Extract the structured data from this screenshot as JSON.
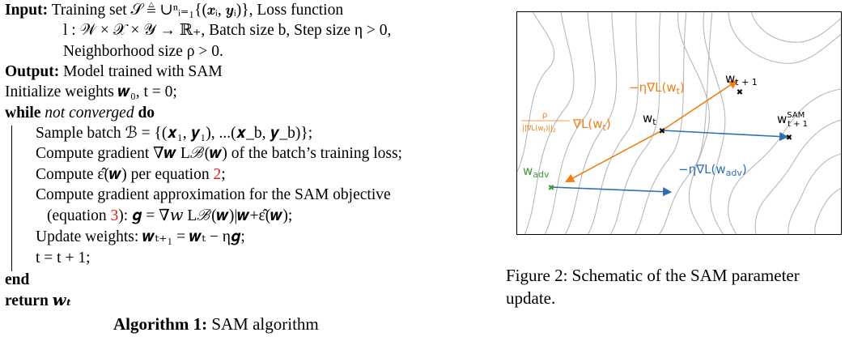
{
  "algorithm": {
    "input_label": "Input:",
    "input_line1": "Training set 𝒮 ≜ ∪ⁿᵢ₌₁{(𝒙ᵢ, 𝒚ᵢ)}, Loss function",
    "input_line2": "l : 𝒲 × 𝒳 × 𝒴 → ℝ₊, Batch size b, Step size η > 0,",
    "input_line3": "Neighborhood size ρ > 0.",
    "output_label": "Output:",
    "output_text": "Model trained with SAM",
    "init_text": "Initialize weights 𝒘₀, t = 0;",
    "while_kw": "while",
    "while_cond": "not converged",
    "do_kw": "do",
    "body1": "Sample batch ℬ = {(𝒙₁, 𝒚₁), ...(𝒙_b, 𝒚_b)};",
    "body2": "Compute gradient ∇𝒘 Lℬ(𝒘) of the batch’s training loss;",
    "body3_pre": "Compute ε̂(𝒘) per equation ",
    "body3_ref": "2",
    "body3_post": ";",
    "body4": "Compute gradient approximation for the SAM objective",
    "body5_pre": "(equation ",
    "body5_ref": "3",
    "body5_post": "): 𝒈 = ∇𝑤 Lℬ(𝒘)|𝒘+ε̂(𝒘);",
    "body6": "Update weights: 𝒘ₜ₊₁ = 𝒘ₜ − η𝒈;",
    "body7": "t = t + 1;",
    "end_kw": "end",
    "return_kw": "return",
    "return_val": "𝒘ₜ",
    "caption_label": "Algorithm 1:",
    "caption_text": "SAM algorithm"
  },
  "figure": {
    "label_wt1": "w",
    "label_wt1_sub": "t + 1",
    "label_eta_grad_wt": "−η∇L(w",
    "label_eta_grad_wt_sub": "t",
    "label_eta_grad_wt_close": ")",
    "label_wt": "w",
    "label_wt_sub": "t",
    "label_sam": "w",
    "label_sam_sup": "SAM",
    "label_sam_sub": "t + 1",
    "label_rho_num": "ρ",
    "label_rho_den": "||∇L(w",
    "label_rho_den_sub": "t",
    "label_rho_den_close": ")||",
    "label_rho_den_2": "2",
    "label_rho_grad": "∇L(w",
    "label_rho_grad_sub": "t",
    "label_rho_grad_close": ")",
    "label_wadv": "w",
    "label_wadv_sub": "adv",
    "label_eta_adv": "−η∇L(w",
    "label_eta_adv_sub": "adv",
    "label_eta_adv_close": ")",
    "colors": {
      "orange": "#f07f15",
      "blue": "#2f6fb0",
      "green": "#3d9a3a",
      "contour": "#b5b5b5",
      "axis": "#000000"
    }
  },
  "figure_caption": {
    "text": "Figure 2: Schematic of the SAM parameter update."
  }
}
